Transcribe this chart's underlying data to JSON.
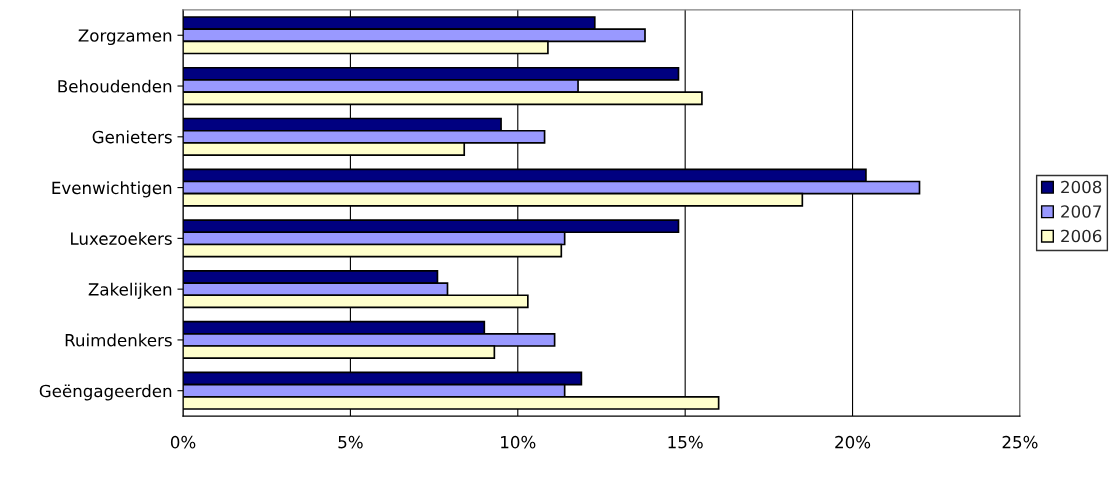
{
  "chart_data": {
    "type": "bar",
    "orientation": "horizontal",
    "categories": [
      "Zorgzamen",
      "Behoudenden",
      "Genieters",
      "Evenwichtigen",
      "Luxezoekers",
      "Zakelijken",
      "Ruimdenkers",
      "Geëngageerden"
    ],
    "series": [
      {
        "name": "2008",
        "color": "#000080",
        "values": [
          12.3,
          14.8,
          9.5,
          20.4,
          14.8,
          7.6,
          9.0,
          11.9
        ]
      },
      {
        "name": "2007",
        "color": "#9999ff",
        "values": [
          13.8,
          11.8,
          10.8,
          22.0,
          11.4,
          7.9,
          11.1,
          11.4
        ]
      },
      {
        "name": "2006",
        "color": "#ffffcc",
        "values": [
          10.9,
          15.5,
          8.4,
          18.5,
          11.3,
          10.3,
          9.3,
          16.0
        ]
      }
    ],
    "xlim": [
      0,
      25
    ],
    "xticks": [
      {
        "value": 0,
        "label": "0%"
      },
      {
        "value": 5,
        "label": "5%"
      },
      {
        "value": 10,
        "label": "10%"
      },
      {
        "value": 15,
        "label": "15%"
      },
      {
        "value": 20,
        "label": "20%"
      },
      {
        "value": 25,
        "label": "25%"
      }
    ],
    "grid": "x",
    "legend": "right"
  }
}
